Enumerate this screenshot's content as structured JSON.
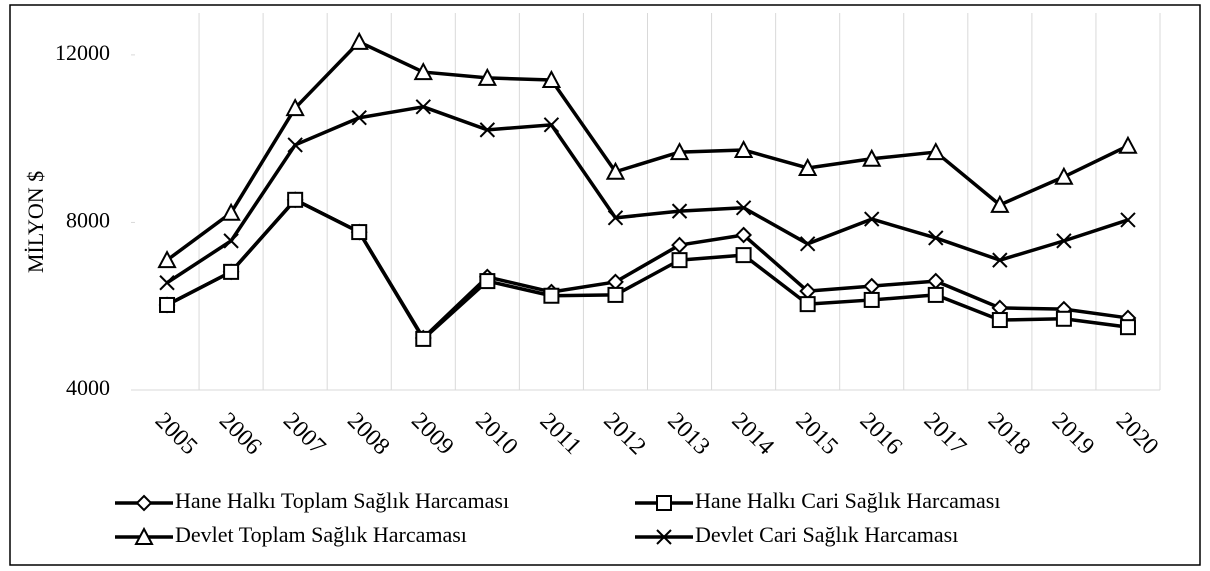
{
  "chart_data": {
    "type": "line",
    "y_label": "MİLYON $",
    "categories": [
      "2005",
      "2006",
      "2007",
      "2008",
      "2009",
      "2010",
      "2011",
      "2012",
      "2013",
      "2014",
      "2015",
      "2016",
      "2017",
      "2018",
      "2019",
      "2020"
    ],
    "ylim": [
      4000,
      13000
    ],
    "yticks": [
      4000,
      8000,
      12000
    ],
    "grid": "vertical",
    "series": [
      {
        "name": "Hane Halkı Toplam Sağlık Harcaması",
        "color": "#000000",
        "marker": "diamond",
        "values": [
          6030,
          6820,
          8540,
          7770,
          5240,
          6700,
          6340,
          6580,
          7460,
          7700,
          6360,
          6480,
          6600,
          5960,
          5930,
          5720
        ]
      },
      {
        "name": "Hane Halkı Cari Sağlık Harcaması",
        "color": "#000000",
        "marker": "square",
        "values": [
          6030,
          6820,
          8540,
          7770,
          5220,
          6600,
          6250,
          6270,
          7100,
          7220,
          6050,
          6150,
          6270,
          5670,
          5700,
          5500
        ]
      },
      {
        "name": "Devlet Toplam Sağlık Harcaması",
        "color": "#000000",
        "marker": "triangle",
        "values": [
          7100,
          8230,
          10730,
          12310,
          11590,
          11450,
          11400,
          9210,
          9680,
          9730,
          9300,
          9520,
          9680,
          8420,
          9090,
          9830
        ]
      },
      {
        "name": "Devlet Cari Sağlık Harcaması",
        "color": "#000000",
        "marker": "x",
        "values": [
          6560,
          7560,
          9850,
          10500,
          10760,
          10210,
          10330,
          8110,
          8270,
          8350,
          7490,
          8080,
          7630,
          7100,
          7560,
          8060
        ]
      }
    ]
  }
}
